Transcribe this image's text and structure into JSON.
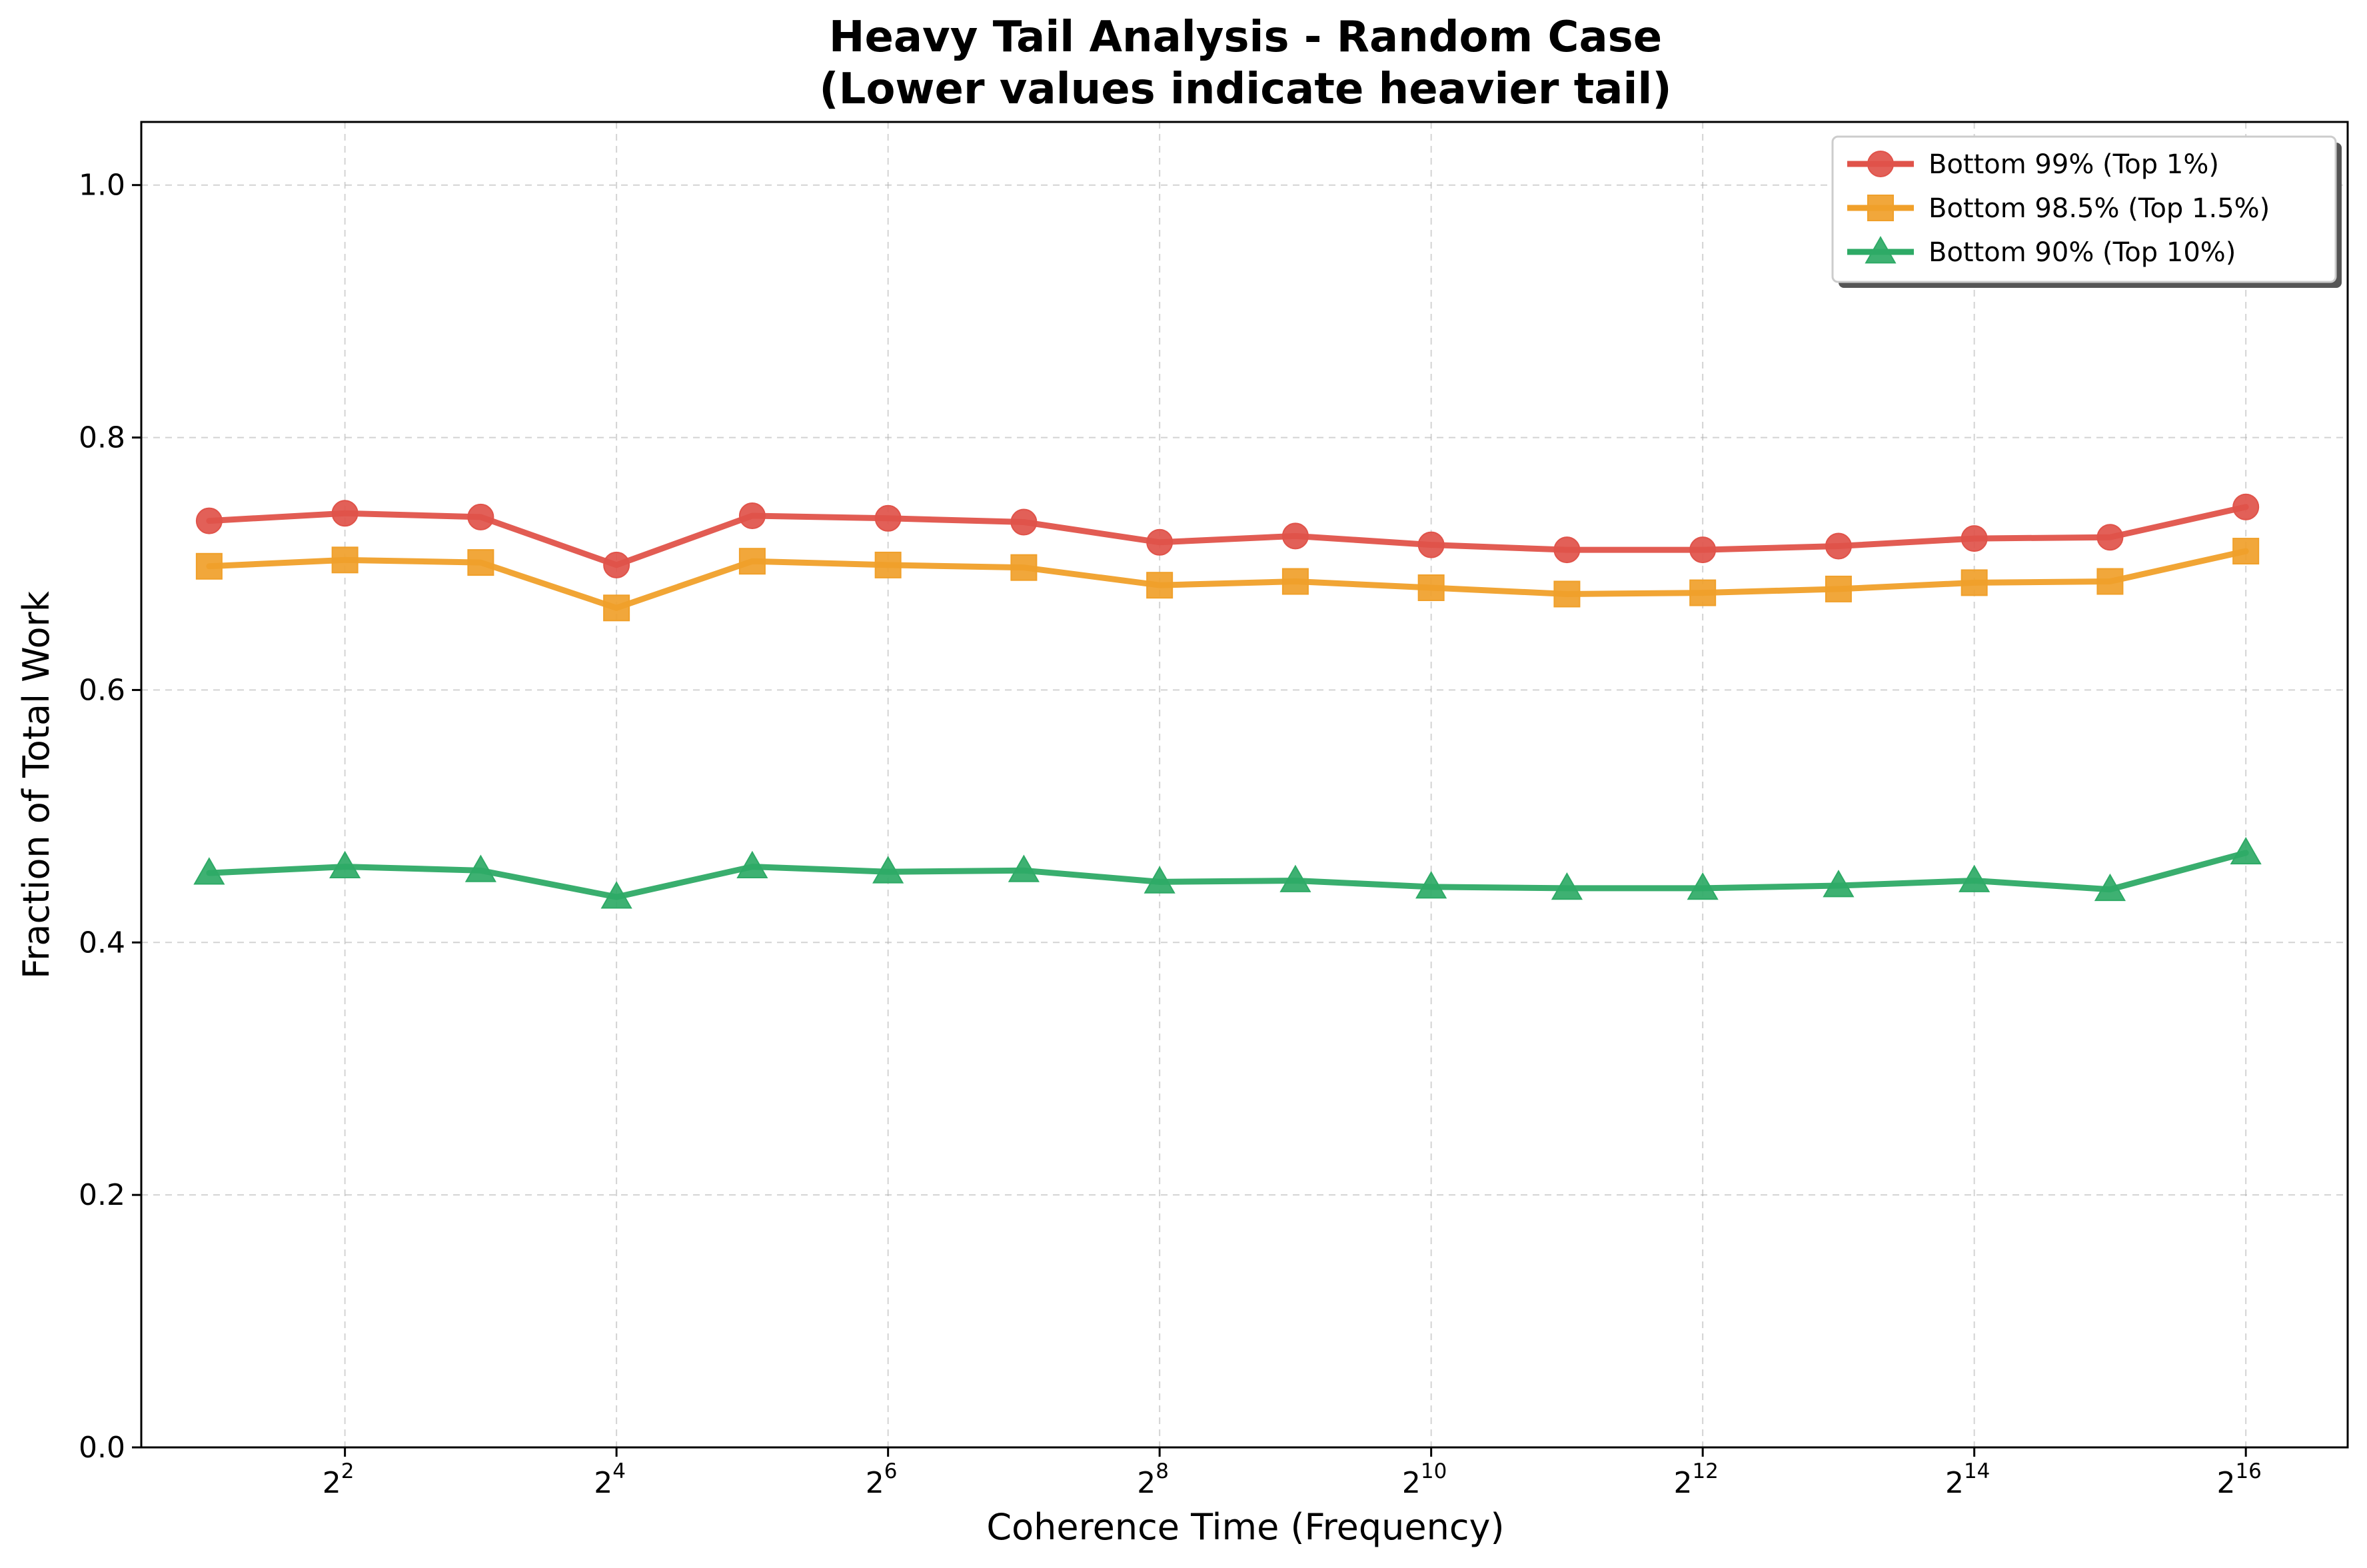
{
  "chart_data": {
    "type": "line",
    "title": [
      "Heavy Tail Analysis - Random Case",
      "(Lower values indicate heavier tail)"
    ],
    "xlabel": "Coherence Time (Frequency)",
    "ylabel": "Fraction of Total Work",
    "x_scale": "log2",
    "x": [
      2,
      4,
      8,
      16,
      32,
      64,
      128,
      256,
      512,
      1024,
      2048,
      4096,
      8192,
      16384,
      32768,
      65536
    ],
    "xticks": [
      {
        "base": "2",
        "exp": "2",
        "value": 4
      },
      {
        "base": "2",
        "exp": "4",
        "value": 16
      },
      {
        "base": "2",
        "exp": "6",
        "value": 64
      },
      {
        "base": "2",
        "exp": "8",
        "value": 256
      },
      {
        "base": "2",
        "exp": "10",
        "value": 1024
      },
      {
        "base": "2",
        "exp": "12",
        "value": 4096
      },
      {
        "base": "2",
        "exp": "14",
        "value": 16384
      },
      {
        "base": "2",
        "exp": "16",
        "value": 65536
      }
    ],
    "ylim": [
      0,
      1.05
    ],
    "yticks": [
      "0.0",
      "0.2",
      "0.4",
      "0.6",
      "0.8",
      "1.0"
    ],
    "grid": true,
    "legend_position": "top-right",
    "series": [
      {
        "name": "Bottom 99% (Top 1%)",
        "color": "#e0534a",
        "marker": "circle",
        "values": [
          0.734,
          0.74,
          0.737,
          0.699,
          0.738,
          0.736,
          0.733,
          0.717,
          0.722,
          0.715,
          0.711,
          0.711,
          0.714,
          0.72,
          0.721,
          0.745
        ]
      },
      {
        "name": "Bottom 98.5% (Top 1.5%)",
        "color": "#f0a02a",
        "marker": "square",
        "values": [
          0.698,
          0.703,
          0.701,
          0.665,
          0.702,
          0.699,
          0.697,
          0.683,
          0.686,
          0.681,
          0.676,
          0.677,
          0.68,
          0.685,
          0.686,
          0.71
        ]
      },
      {
        "name": "Bottom 90% (Top 10%)",
        "color": "#2eaa66",
        "marker": "triangle",
        "values": [
          0.455,
          0.46,
          0.457,
          0.436,
          0.46,
          0.456,
          0.457,
          0.448,
          0.449,
          0.444,
          0.443,
          0.443,
          0.445,
          0.449,
          0.442,
          0.471
        ]
      }
    ]
  }
}
